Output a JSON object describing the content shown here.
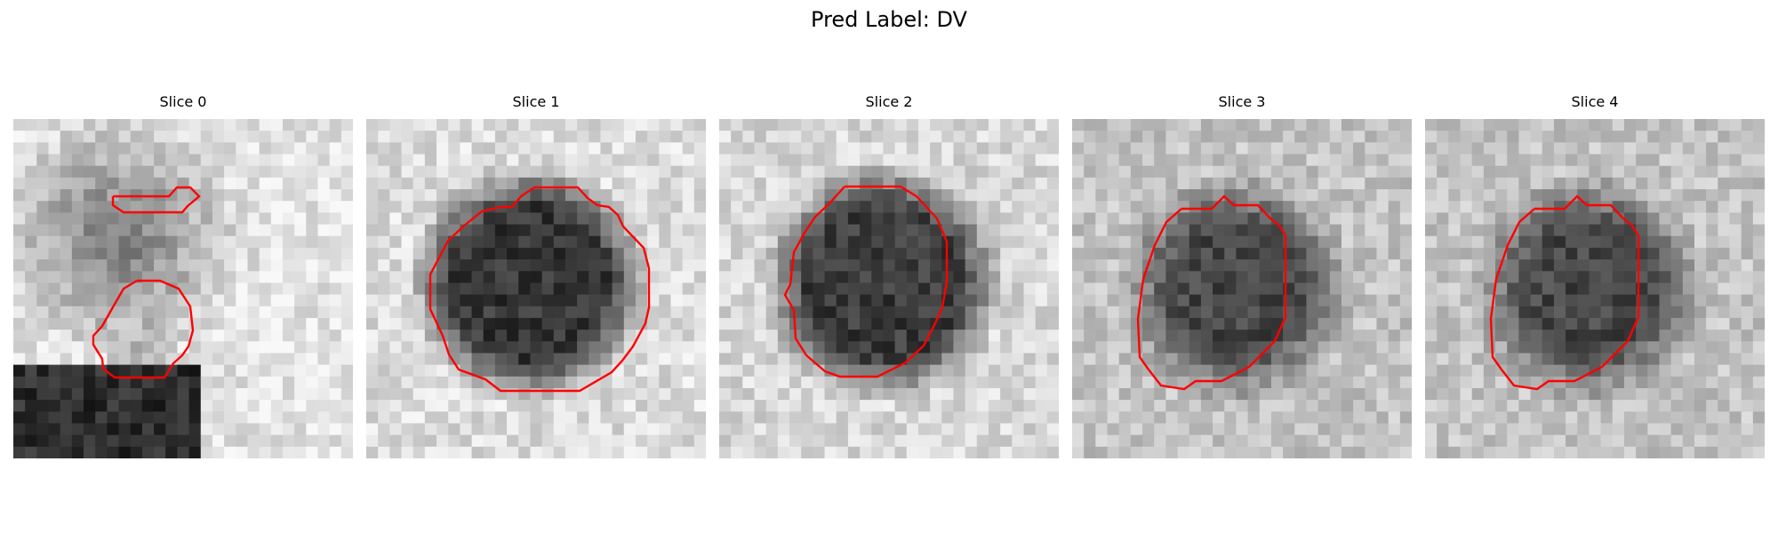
{
  "figure": {
    "title": "Pred Label: DV"
  },
  "panels": [
    {
      "title": "Slice 0"
    },
    {
      "title": "Slice 1"
    },
    {
      "title": "Slice 2"
    },
    {
      "title": "Slice 3"
    },
    {
      "title": "Slice 4"
    }
  ],
  "colors": {
    "contour": "#ff0000",
    "background": "#ffffff",
    "colormap": "grayscale"
  }
}
